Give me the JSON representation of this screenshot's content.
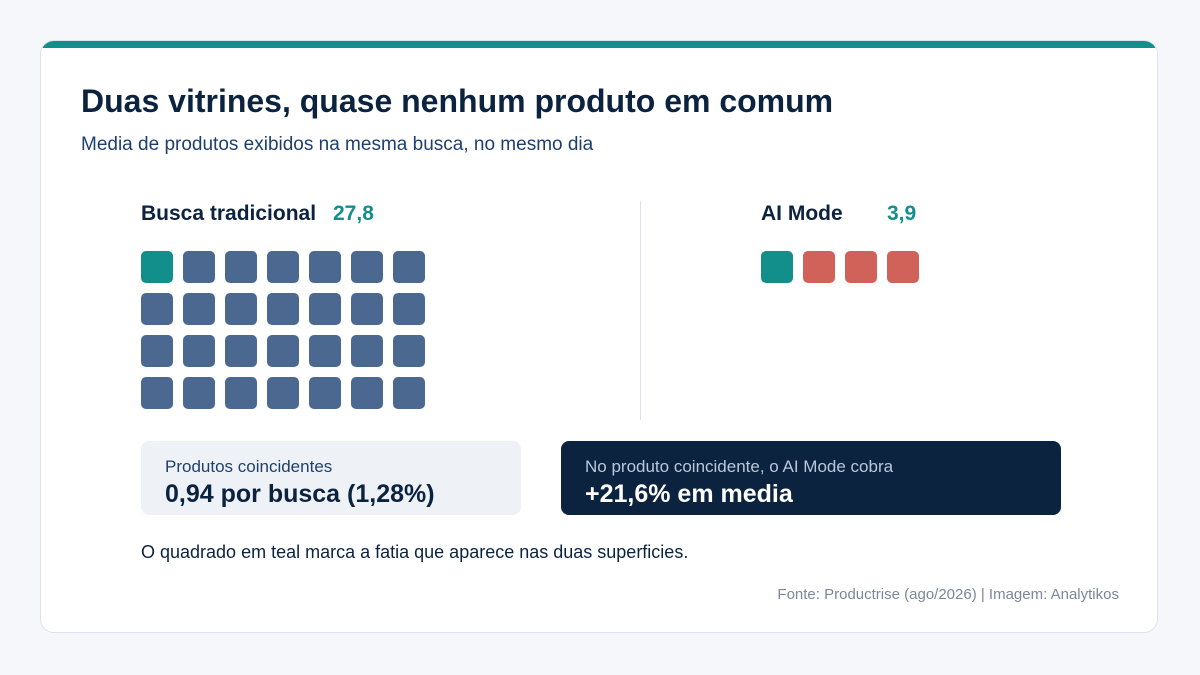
{
  "title": "Duas vitrines, quase nenhum produto em comum",
  "subtitle": "Media de produtos exibidos na mesma busca, no mesmo dia",
  "colors": {
    "accent": "#138f8b",
    "traditional": "#4a6890",
    "ai_mode": "#d0625a",
    "navy": "#0c2340"
  },
  "chart_data": {
    "type": "waffle",
    "series": [
      {
        "name": "Busca tradicional",
        "value_label": "27,8",
        "value": 27.8,
        "squares": 28,
        "highlighted_squares": 1
      },
      {
        "name": "AI Mode",
        "value_label": "3,9",
        "value": 3.9,
        "squares": 4,
        "highlighted_squares": 1
      }
    ]
  },
  "stats": {
    "overlap": {
      "label": "Produtos coincidentes",
      "value": "0,94 por busca (1,28%)"
    },
    "price": {
      "label": "No produto coincidente, o AI Mode cobra",
      "value": "+21,6% em media"
    }
  },
  "note": "O quadrado em teal marca a fatia que aparece nas duas superficies.",
  "source": "Fonte: Productrise (ago/2026) | Imagem: Analytikos"
}
